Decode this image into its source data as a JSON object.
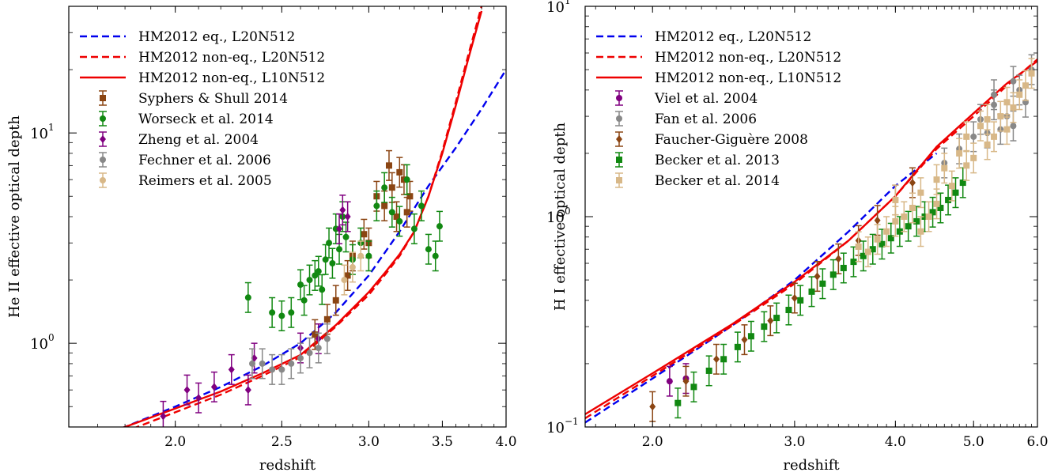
{
  "chart_data": [
    {
      "type": "line",
      "xlabel": "redshift",
      "ylabel": "He II effective optical depth",
      "xscale": "log",
      "yscale": "log",
      "xlim": [
        1.6,
        4.0
      ],
      "ylim": [
        0.4,
        40
      ],
      "xticks": [
        2.0,
        2.5,
        3.0,
        3.5,
        4.0
      ],
      "xtick_labels": [
        "2.0",
        "2.5",
        "3.0",
        "3.5",
        "4.0"
      ],
      "yticks_major": [
        1,
        10
      ],
      "ytick_labels": [
        "10",
        "10"
      ],
      "ytick_exponents": [
        "0",
        "1"
      ],
      "legend_position": "top-left",
      "series": [
        {
          "name": "HM2012 eq., L20N512",
          "kind": "line",
          "color": "#0000ee",
          "dash": "dashed",
          "x": [
            1.6,
            1.8,
            2.0,
            2.2,
            2.4,
            2.6,
            2.8,
            3.0,
            3.2,
            3.4,
            3.6,
            3.8,
            4.0
          ],
          "y": [
            0.33,
            0.4,
            0.5,
            0.62,
            0.78,
            1.0,
            1.4,
            2.1,
            3.4,
            5.6,
            8.5,
            13,
            20
          ]
        },
        {
          "name": "HM2012 non-eq., L20N512",
          "kind": "line",
          "color": "#ee0000",
          "dash": "dashed",
          "x": [
            1.6,
            1.8,
            2.0,
            2.2,
            2.4,
            2.6,
            2.8,
            3.0,
            3.1,
            3.2,
            3.3,
            3.4,
            3.5,
            3.6,
            3.7,
            3.8
          ],
          "y": [
            0.32,
            0.38,
            0.47,
            0.57,
            0.7,
            0.86,
            1.2,
            1.7,
            2.1,
            2.6,
            3.4,
            5.0,
            8.2,
            14,
            24,
            40
          ]
        },
        {
          "name": "HM2012 non-eq., L10N512",
          "kind": "line",
          "color": "#ee0000",
          "dash": "solid",
          "x": [
            1.6,
            1.8,
            2.0,
            2.2,
            2.4,
            2.6,
            2.8,
            3.0,
            3.1,
            3.2,
            3.3,
            3.4,
            3.5,
            3.6,
            3.7,
            3.8
          ],
          "y": [
            0.34,
            0.4,
            0.49,
            0.59,
            0.72,
            0.88,
            1.22,
            1.75,
            2.15,
            2.65,
            3.4,
            5.0,
            8.0,
            13.5,
            23,
            38
          ]
        },
        {
          "name": "Syphers & Shull 2014",
          "kind": "points",
          "color": "#8b4513",
          "marker": "square",
          "x": [
            2.75,
            2.8,
            2.87,
            2.9,
            2.97,
            3.0,
            3.05,
            3.1,
            3.13,
            3.15,
            3.18,
            3.2,
            3.23,
            3.25,
            3.27,
            2.68
          ],
          "y": [
            1.3,
            1.6,
            2.1,
            2.6,
            3.3,
            3.0,
            5.0,
            4.5,
            7.0,
            5.5,
            4.0,
            6.5,
            6.0,
            4.2,
            5.0,
            1.1
          ]
        },
        {
          "name": "Worseck et al. 2014",
          "kind": "points",
          "color": "#118811",
          "marker": "circle",
          "x": [
            2.33,
            2.45,
            2.5,
            2.55,
            2.6,
            2.65,
            2.7,
            2.72,
            2.74,
            2.76,
            2.78,
            2.8,
            2.82,
            2.84,
            2.86,
            2.9,
            2.95,
            3.0,
            3.05,
            3.1,
            3.15,
            3.2,
            3.25,
            3.3,
            3.35,
            3.4,
            3.45,
            3.48,
            2.62,
            2.68
          ],
          "y": [
            1.65,
            1.4,
            1.35,
            1.4,
            1.9,
            2.0,
            2.2,
            1.8,
            2.5,
            3.0,
            2.4,
            3.5,
            2.8,
            4.0,
            3.2,
            2.5,
            3.0,
            2.6,
            4.5,
            5.5,
            4.2,
            3.8,
            6.0,
            3.5,
            4.5,
            2.8,
            2.6,
            3.6,
            1.6,
            2.1
          ]
        },
        {
          "name": "Zheng et al. 2004",
          "kind": "points",
          "color": "#800080",
          "marker": "diamond",
          "x": [
            1.95,
            2.05,
            2.1,
            2.17,
            2.25,
            2.33,
            2.36,
            2.6,
            2.7,
            2.82,
            2.84,
            2.87
          ],
          "y": [
            0.45,
            0.6,
            0.55,
            0.62,
            0.75,
            0.6,
            0.85,
            0.95,
            1.05,
            3.5,
            4.3,
            4.0
          ]
        },
        {
          "name": "Fechner et al. 2006",
          "kind": "points",
          "color": "#888888",
          "marker": "circle",
          "x": [
            2.35,
            2.4,
            2.45,
            2.5,
            2.55,
            2.6,
            2.65,
            2.7,
            2.75
          ],
          "y": [
            0.8,
            0.8,
            0.75,
            0.75,
            0.8,
            0.85,
            0.9,
            0.95,
            1.05
          ]
        },
        {
          "name": "Reimers et al. 2005",
          "kind": "points",
          "color": "#d8b888",
          "marker": "circle",
          "x": [
            2.85,
            2.9,
            2.95
          ],
          "y": [
            2.0,
            2.3,
            2.6
          ]
        }
      ]
    },
    {
      "type": "line",
      "xlabel": "redshift",
      "ylabel": "H I effective optical depth",
      "xscale": "log",
      "yscale": "log",
      "xlim": [
        1.65,
        6.0
      ],
      "ylim": [
        0.1,
        10
      ],
      "xticks": [
        2.0,
        3.0,
        4.0,
        5.0,
        6.0
      ],
      "xtick_labels": [
        "2.0",
        "3.0",
        "4.0",
        "5.0",
        "6.0"
      ],
      "yticks_major": [
        0.1,
        1,
        10
      ],
      "ytick_labels": [
        "10",
        "10",
        "10"
      ],
      "ytick_exponents": [
        "−1",
        "0",
        "1"
      ],
      "legend_position": "top-left",
      "series": [
        {
          "name": "HM2012 eq., L20N512",
          "kind": "line",
          "color": "#0000ee",
          "dash": "dashed",
          "x": [
            1.65,
            2.0,
            2.5,
            3.0,
            3.5,
            4.0,
            4.5
          ],
          "y": [
            0.105,
            0.17,
            0.3,
            0.5,
            0.85,
            1.4,
            2.0
          ]
        },
        {
          "name": "HM2012 non-eq., L20N512",
          "kind": "line",
          "color": "#ee0000",
          "dash": "dashed",
          "x": [
            1.65,
            2.0,
            2.5,
            3.0,
            3.5,
            4.0,
            4.5,
            5.0,
            5.5,
            6.0
          ],
          "y": [
            0.11,
            0.175,
            0.3,
            0.48,
            0.77,
            1.25,
            2.1,
            3.0,
            4.2,
            5.6
          ]
        },
        {
          "name": "HM2012 non-eq., L10N512",
          "kind": "line",
          "color": "#ee0000",
          "dash": "solid",
          "x": [
            1.65,
            2.0,
            2.5,
            3.0,
            3.5,
            4.0,
            4.5,
            5.0,
            5.5,
            6.0
          ],
          "y": [
            0.115,
            0.18,
            0.305,
            0.49,
            0.77,
            1.25,
            2.15,
            3.1,
            4.3,
            5.5
          ]
        },
        {
          "name": "Viel et al. 2004",
          "kind": "points",
          "color": "#800080",
          "marker": "circle",
          "x": [
            2.1,
            2.2
          ],
          "y": [
            0.165,
            0.17
          ]
        },
        {
          "name": "Fan et al. 2006",
          "kind": "points",
          "color": "#888888",
          "marker": "circle",
          "x": [
            4.6,
            4.8,
            5.0,
            5.1,
            5.2,
            5.3,
            5.4,
            5.5,
            5.6,
            5.7,
            5.8,
            5.9,
            5.3,
            5.6
          ],
          "y": [
            1.8,
            2.1,
            2.4,
            2.9,
            2.5,
            3.4,
            2.6,
            3.0,
            2.7,
            4.0,
            3.5,
            5.0,
            3.8,
            4.4
          ]
        },
        {
          "name": "Faucher-Giguère 2008",
          "kind": "points",
          "color": "#8b4513",
          "marker": "diamond",
          "x": [
            2.0,
            2.2,
            2.4,
            2.6,
            2.8,
            3.0,
            3.2,
            3.4,
            3.6,
            3.8,
            4.0,
            4.2
          ],
          "y": [
            0.125,
            0.165,
            0.21,
            0.26,
            0.32,
            0.41,
            0.52,
            0.63,
            0.77,
            0.96,
            1.2,
            1.45
          ]
        },
        {
          "name": "Becker et al. 2013",
          "kind": "points",
          "color": "#118811",
          "marker": "square",
          "x": [
            2.15,
            2.25,
            2.35,
            2.45,
            2.55,
            2.65,
            2.75,
            2.85,
            2.95,
            3.05,
            3.15,
            3.25,
            3.35,
            3.45,
            3.55,
            3.65,
            3.75,
            3.85,
            3.95,
            4.05,
            4.15,
            4.25,
            4.35,
            4.45,
            4.55,
            4.65,
            4.75,
            4.85
          ],
          "y": [
            0.13,
            0.155,
            0.185,
            0.21,
            0.24,
            0.27,
            0.3,
            0.33,
            0.36,
            0.4,
            0.44,
            0.48,
            0.53,
            0.57,
            0.61,
            0.65,
            0.7,
            0.74,
            0.79,
            0.85,
            0.9,
            0.95,
            1.0,
            1.05,
            1.1,
            1.2,
            1.3,
            1.45
          ]
        },
        {
          "name": "Becker et al. 2014",
          "kind": "points",
          "color": "#d8b888",
          "marker": "square",
          "x": [
            3.6,
            3.7,
            3.8,
            3.9,
            4.0,
            4.1,
            4.2,
            4.3,
            4.4,
            4.5,
            4.6,
            4.7,
            4.8,
            4.9,
            5.0,
            5.1,
            5.2,
            5.3,
            5.4,
            5.5,
            5.6,
            5.7,
            5.8,
            5.9,
            4.0,
            4.3,
            4.5,
            4.9,
            5.2,
            5.5
          ],
          "y": [
            0.72,
            0.68,
            0.78,
            0.85,
            0.95,
            1.0,
            1.1,
            1.3,
            1.0,
            1.5,
            1.7,
            1.4,
            2.0,
            2.4,
            1.9,
            2.7,
            2.2,
            2.4,
            3.0,
            2.6,
            3.3,
            3.8,
            4.2,
            4.8,
            1.2,
            0.85,
            1.15,
            1.75,
            2.9,
            3.5
          ]
        }
      ]
    }
  ]
}
